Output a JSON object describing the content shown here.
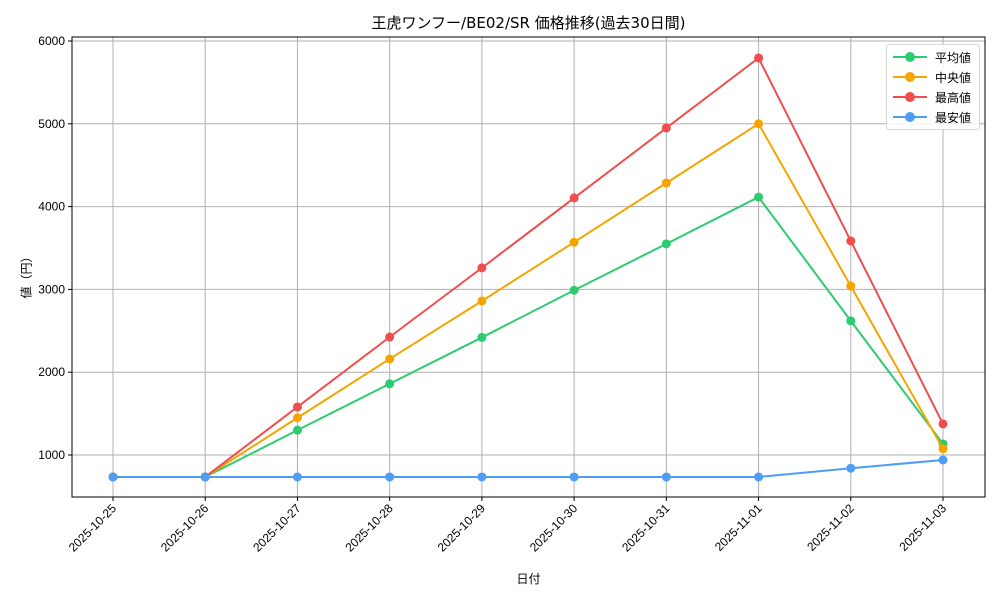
{
  "chart_data": {
    "type": "line",
    "title": "王虎ワンフー/BE02/SR 価格推移(過去30日間)",
    "xlabel": "日付",
    "ylabel": "値（円）",
    "categories": [
      "2025-10-25",
      "2025-10-26",
      "2025-10-27",
      "2025-10-28",
      "2025-10-29",
      "2025-10-30",
      "2025-10-31",
      "2025-11-01",
      "2025-11-02",
      "2025-11-03"
    ],
    "yticks": [
      1000,
      2000,
      3000,
      4000,
      5000,
      6000
    ],
    "ylim": [
      500,
      6050
    ],
    "grid": true,
    "legend_position": "upper right",
    "series": [
      {
        "name": "平均値",
        "color": "#2ecc71",
        "values": [
          735,
          735,
          1300,
          1860,
          2420,
          2990,
          3550,
          4115,
          2620,
          1135
        ]
      },
      {
        "name": "中央値",
        "color": "#f5a500",
        "values": [
          735,
          735,
          1450,
          2160,
          2860,
          3570,
          4285,
          5000,
          3040,
          1075
        ]
      },
      {
        "name": "最高値",
        "color": "#f04e4e",
        "values": [
          735,
          735,
          1580,
          2425,
          3260,
          4105,
          4950,
          5795,
          3585,
          1375
        ]
      },
      {
        "name": "最安値",
        "color": "#4f9cf5",
        "values": [
          735,
          735,
          735,
          735,
          735,
          735,
          735,
          735,
          840,
          940
        ]
      }
    ]
  }
}
